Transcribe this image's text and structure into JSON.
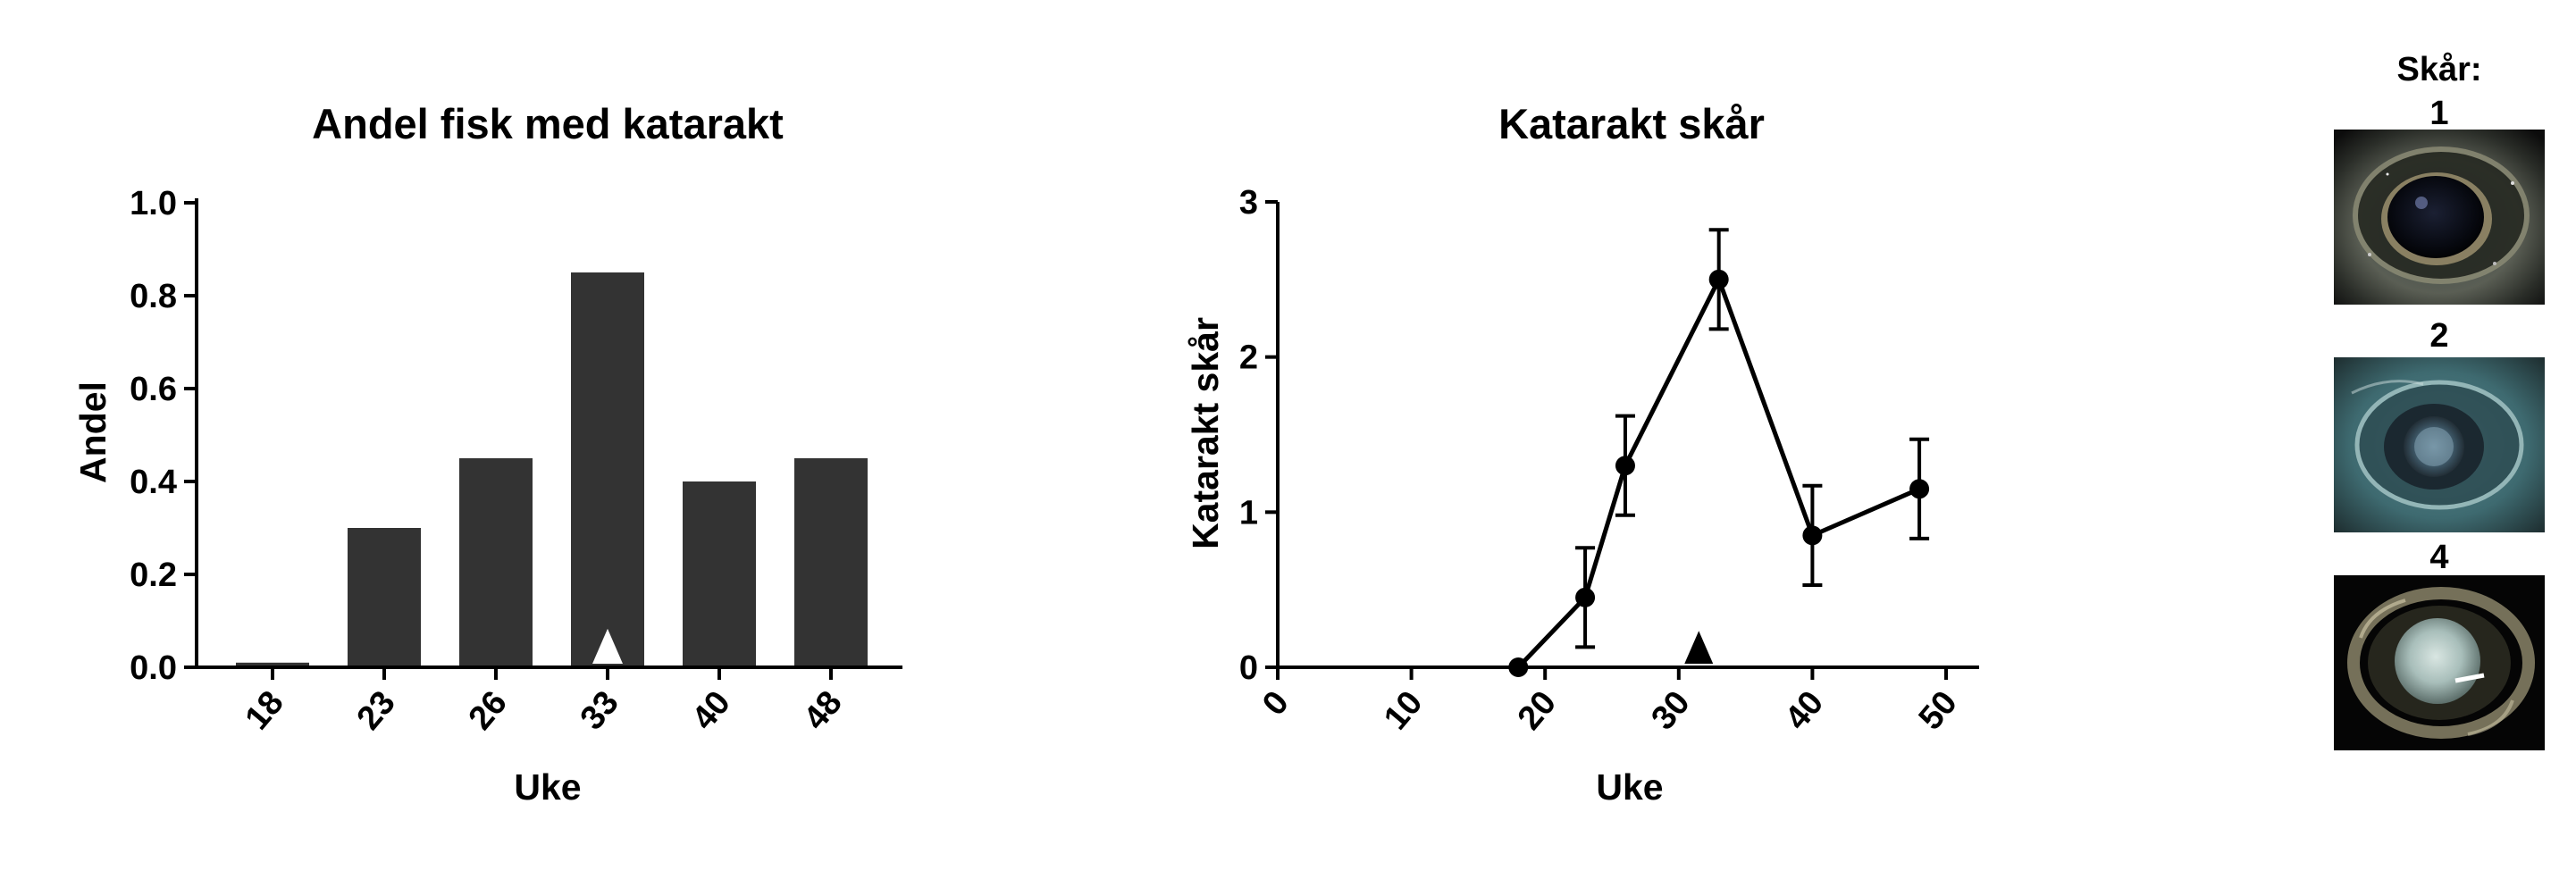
{
  "chart_data": [
    {
      "type": "bar",
      "title": "Andel fisk med katarakt",
      "xlabel": "Uke",
      "ylabel": "Andel",
      "categories": [
        "18",
        "23",
        "26",
        "33",
        "40",
        "48"
      ],
      "values": [
        0.01,
        0.3,
        0.45,
        0.85,
        0.4,
        0.45
      ],
      "ylim": [
        0,
        1.0
      ],
      "yticks": [
        "0.0",
        "0.2",
        "0.4",
        "0.6",
        "0.8",
        "1.0"
      ],
      "bar_color": "#333333",
      "marker": {
        "category": "33",
        "shape": "triangle",
        "color": "#ffffff"
      },
      "grid": false
    },
    {
      "type": "line",
      "title": "Katarakt skår",
      "xlabel": "Uke",
      "ylabel": "Katarakt skår",
      "x": [
        18,
        23,
        26,
        33,
        40,
        48
      ],
      "y": [
        0,
        0.45,
        1.3,
        2.5,
        0.85,
        1.15
      ],
      "error": [
        0,
        0.32,
        0.32,
        0.32,
        0.32,
        0.32
      ],
      "xlim": [
        0,
        50
      ],
      "ylim": [
        0,
        3
      ],
      "xticks": [
        "0",
        "10",
        "20",
        "30",
        "40",
        "50"
      ],
      "yticks": [
        "0",
        "1",
        "2",
        "3"
      ],
      "baseline_from": 0,
      "marker": {
        "x": 31.5,
        "shape": "triangle",
        "color": "#000000"
      },
      "grid": false
    }
  ],
  "scores_panel": {
    "heading": "Skår:",
    "items": [
      {
        "label": "1"
      },
      {
        "label": "2"
      },
      {
        "label": "4"
      }
    ]
  }
}
